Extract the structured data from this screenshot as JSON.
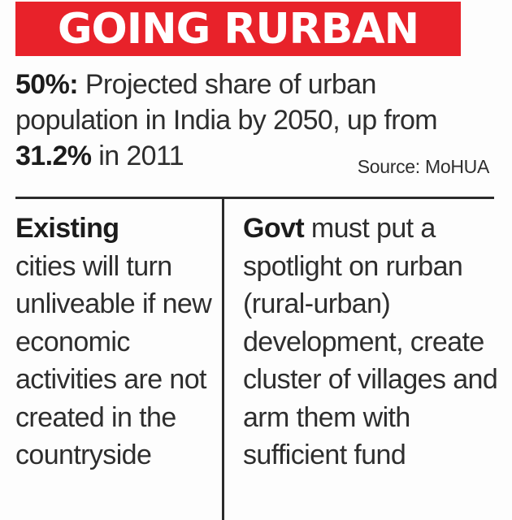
{
  "banner": {
    "title": "GOING RURBAN",
    "background": "#e8222a",
    "text_color": "#ffffff"
  },
  "stat": {
    "highlight": "50%:",
    "text_1": " Projected share of urban population in India by 2050, up from ",
    "highlight_2": "31.2%",
    "text_2": " in 2011"
  },
  "source": "Source: MoHUA",
  "left_column": {
    "lead": "Existing",
    "body": "cities will turn unliveable if new economic activities are not created in the countryside"
  },
  "right_column": {
    "lead": "Govt",
    "body": " must put a spotlight on rurban (rural-urban) development, create cluster of villages and arm them with sufficient fund"
  }
}
